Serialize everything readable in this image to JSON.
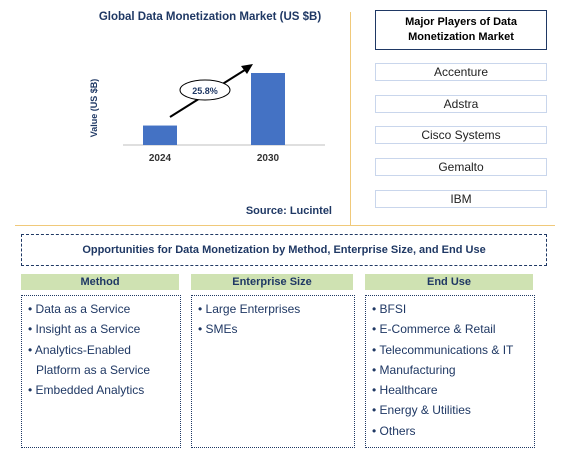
{
  "chart": {
    "title": "Global Data Monetization Market (US $B)",
    "source": "Source: Lucintel",
    "growth_label": "25.8%"
  },
  "chart_data": {
    "type": "bar",
    "categories": [
      "2024",
      "2030"
    ],
    "values": [
      1.0,
      3.7
    ],
    "ylabel": "Value (US $B)",
    "xlabel": "",
    "bar_color": "#4472c4",
    "annotation": "25.8%"
  },
  "players": {
    "title": "Major Players of Data Monetization Market",
    "items": [
      "Accenture",
      "Adstra",
      "Cisco Systems",
      "Gemalto",
      "IBM"
    ]
  },
  "opportunities": {
    "title": "Opportunities for Data Monetization by Method, Enterprise Size, and End Use",
    "columns": [
      {
        "header": "Method",
        "items": [
          "Data as a Service",
          "Insight as a Service",
          "Analytics-Enabled Platform as a Service",
          "Embedded Analytics"
        ]
      },
      {
        "header": "Enterprise Size",
        "items": [
          "Large Enterprises",
          "SMEs"
        ]
      },
      {
        "header": "End Use",
        "items": [
          "BFSI",
          "E-Commerce & Retail",
          "Telecommunications & IT",
          "Manufacturing",
          "Healthcare",
          "Energy & Utilities",
          "Others"
        ]
      }
    ]
  },
  "colors": {
    "accent": "#1f3864",
    "bar": "#4472c4",
    "header_bg": "#cfe2b2",
    "divider": "#f0c97a"
  }
}
